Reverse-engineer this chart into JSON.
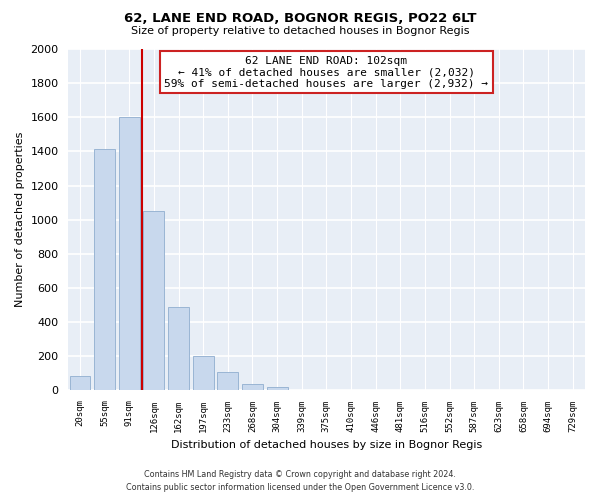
{
  "title": "62, LANE END ROAD, BOGNOR REGIS, PO22 6LT",
  "subtitle": "Size of property relative to detached houses in Bognor Regis",
  "xlabel": "Distribution of detached houses by size in Bognor Regis",
  "ylabel": "Number of detached properties",
  "bar_labels": [
    "20sqm",
    "55sqm",
    "91sqm",
    "126sqm",
    "162sqm",
    "197sqm",
    "233sqm",
    "268sqm",
    "304sqm",
    "339sqm",
    "375sqm",
    "410sqm",
    "446sqm",
    "481sqm",
    "516sqm",
    "552sqm",
    "587sqm",
    "623sqm",
    "658sqm",
    "694sqm",
    "729sqm"
  ],
  "bar_values": [
    85,
    1415,
    1600,
    1050,
    490,
    200,
    105,
    40,
    20,
    0,
    0,
    0,
    0,
    0,
    0,
    0,
    0,
    0,
    0,
    0,
    0
  ],
  "bar_color": "#c8d8ed",
  "bar_edge_color": "#9ab5d4",
  "vline_color": "#cc0000",
  "ylim": [
    0,
    2000
  ],
  "yticks": [
    0,
    200,
    400,
    600,
    800,
    1000,
    1200,
    1400,
    1600,
    1800,
    2000
  ],
  "annotation_line1": "62 LANE END ROAD: 102sqm",
  "annotation_line2": "← 41% of detached houses are smaller (2,032)",
  "annotation_line3": "59% of semi-detached houses are larger (2,932) →",
  "footer_line1": "Contains HM Land Registry data © Crown copyright and database right 2024.",
  "footer_line2": "Contains public sector information licensed under the Open Government Licence v3.0.",
  "bg_color": "#ffffff",
  "plot_bg_color": "#e8eef6"
}
